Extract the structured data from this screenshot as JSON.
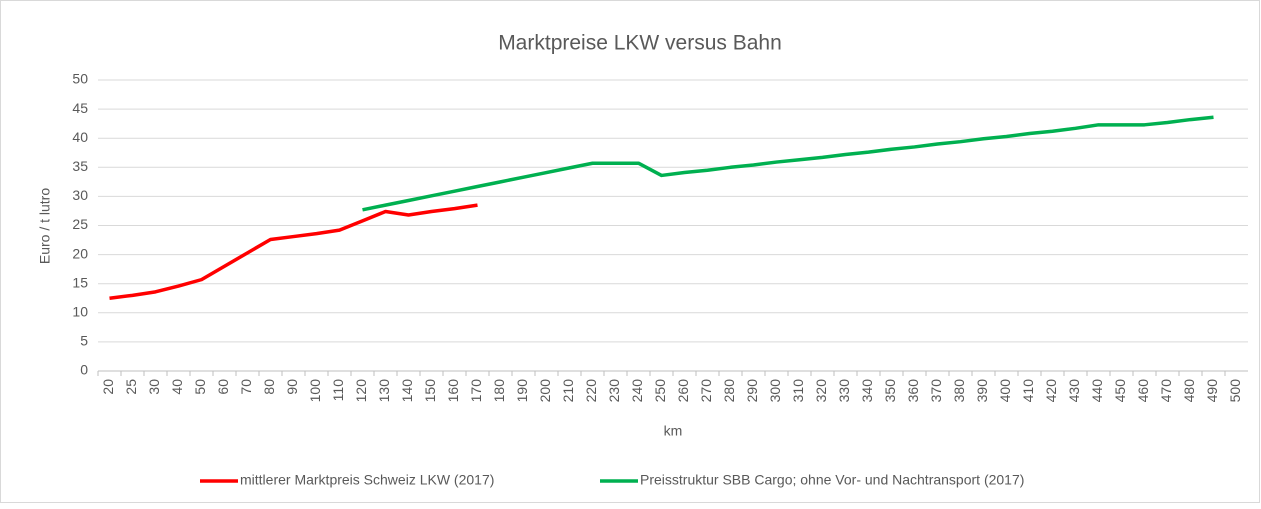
{
  "chart_data": {
    "type": "line",
    "title": "Marktpreise LKW versus Bahn",
    "x_label": "km",
    "y_label": "Euro / t lutro",
    "categories": [
      "20",
      "25",
      "30",
      "40",
      "50",
      "60",
      "70",
      "80",
      "90",
      "100",
      "110",
      "120",
      "130",
      "140",
      "150",
      "160",
      "170",
      "180",
      "190",
      "200",
      "210",
      "220",
      "230",
      "240",
      "250",
      "260",
      "270",
      "280",
      "290",
      "300",
      "310",
      "320",
      "330",
      "340",
      "350",
      "360",
      "370",
      "380",
      "390",
      "400",
      "410",
      "420",
      "430",
      "440",
      "450",
      "460",
      "470",
      "480",
      "490",
      "500"
    ],
    "series": [
      {
        "name": "mittlerer Marktpreis Schweiz LKW (2017)",
        "color": "#ff0000",
        "values": [
          12.5,
          13.0,
          13.6,
          14.6,
          15.7,
          18.0,
          20.3,
          22.6,
          23.1,
          23.6,
          24.2,
          25.8,
          27.4,
          26.8,
          27.4,
          27.9,
          28.5,
          null,
          null,
          null,
          null,
          null,
          null,
          null,
          null,
          null,
          null,
          null,
          null,
          null,
          null,
          null,
          null,
          null,
          null,
          null,
          null,
          null,
          null,
          null,
          null,
          null,
          null,
          null,
          null,
          null,
          null,
          null,
          null,
          null
        ]
      },
      {
        "name": "Preisstruktur SBB Cargo; ohne Vor- und Nachtransport (2017)",
        "color": "#00b050",
        "values": [
          null,
          null,
          null,
          null,
          null,
          null,
          null,
          null,
          null,
          null,
          null,
          27.7,
          28.5,
          29.3,
          30.1,
          30.9,
          31.7,
          32.5,
          33.3,
          34.1,
          34.9,
          35.7,
          35.7,
          35.7,
          33.6,
          34.1,
          34.5,
          35.0,
          35.4,
          35.9,
          36.3,
          36.7,
          37.2,
          37.6,
          38.1,
          38.5,
          39.0,
          39.4,
          39.9,
          40.3,
          40.8,
          41.2,
          41.7,
          42.3,
          42.3,
          42.3,
          42.7,
          43.2,
          43.6,
          null
        ]
      }
    ],
    "ylim": [
      0,
      50
    ],
    "yticks": [
      0,
      5,
      10,
      15,
      20,
      25,
      30,
      35,
      40,
      45,
      50
    ],
    "grid": true,
    "legend": "bottom"
  }
}
